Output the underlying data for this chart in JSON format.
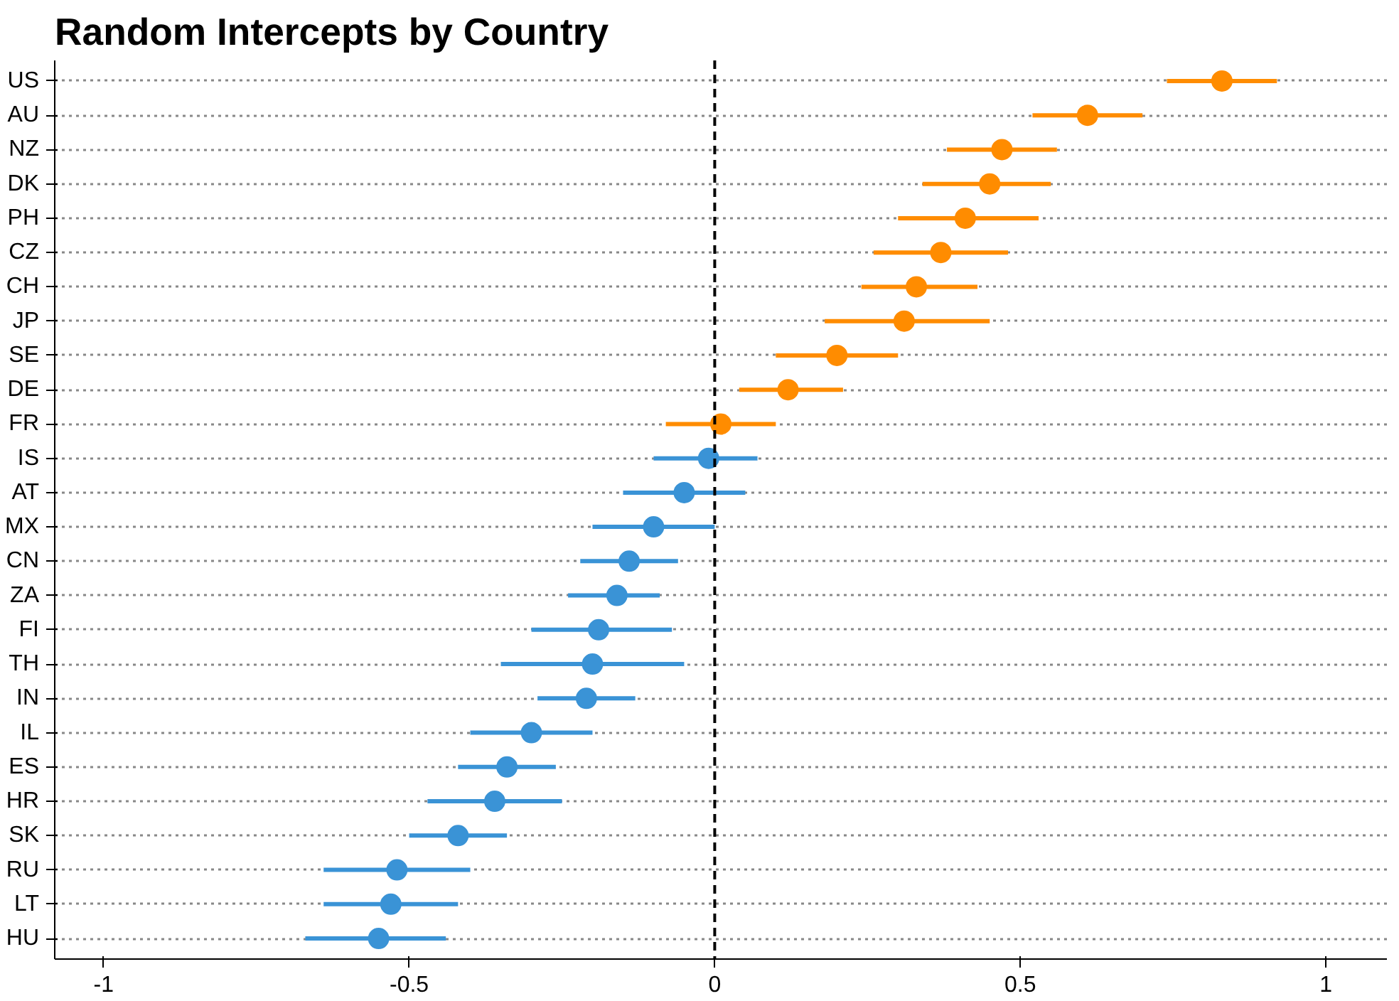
{
  "chart_data": {
    "type": "scatter",
    "orientation": "horizontal",
    "title": "Random Intercepts by Country",
    "categories": [
      "US",
      "AU",
      "NZ",
      "DK",
      "PH",
      "CZ",
      "CH",
      "JP",
      "SE",
      "DE",
      "FR",
      "IS",
      "AT",
      "MX",
      "CN",
      "ZA",
      "FI",
      "TH",
      "IN",
      "IL",
      "ES",
      "HR",
      "SK",
      "RU",
      "LT",
      "HU"
    ],
    "values": [
      0.83,
      0.61,
      0.47,
      0.45,
      0.41,
      0.37,
      0.33,
      0.31,
      0.2,
      0.12,
      0.01,
      -0.01,
      -0.05,
      -0.1,
      -0.14,
      -0.16,
      -0.19,
      -0.2,
      -0.21,
      -0.3,
      -0.34,
      -0.36,
      -0.42,
      -0.52,
      -0.53,
      -0.55
    ],
    "errors": [
      [
        0.74,
        0.92
      ],
      [
        0.52,
        0.7
      ],
      [
        0.38,
        0.56
      ],
      [
        0.34,
        0.55
      ],
      [
        0.3,
        0.53
      ],
      [
        0.26,
        0.48
      ],
      [
        0.24,
        0.43
      ],
      [
        0.18,
        0.45
      ],
      [
        0.1,
        0.3
      ],
      [
        0.04,
        0.21
      ],
      [
        -0.08,
        0.1
      ],
      [
        -0.1,
        0.07
      ],
      [
        -0.15,
        0.05
      ],
      [
        -0.2,
        0.0
      ],
      [
        -0.22,
        -0.06
      ],
      [
        -0.24,
        -0.09
      ],
      [
        -0.3,
        -0.07
      ],
      [
        -0.35,
        -0.05
      ],
      [
        -0.29,
        -0.13
      ],
      [
        -0.4,
        -0.2
      ],
      [
        -0.42,
        -0.26
      ],
      [
        -0.47,
        -0.25
      ],
      [
        -0.5,
        -0.34
      ],
      [
        -0.64,
        -0.4
      ],
      [
        -0.64,
        -0.42
      ],
      [
        -0.67,
        -0.44
      ]
    ],
    "colors": [
      "#ff8c00",
      "#ff8c00",
      "#ff8c00",
      "#ff8c00",
      "#ff8c00",
      "#ff8c00",
      "#ff8c00",
      "#ff8c00",
      "#ff8c00",
      "#ff8c00",
      "#ff8c00",
      "#3a93d6",
      "#3a93d6",
      "#3a93d6",
      "#3a93d6",
      "#3a93d6",
      "#3a93d6",
      "#3a93d6",
      "#3a93d6",
      "#3a93d6",
      "#3a93d6",
      "#3a93d6",
      "#3a93d6",
      "#3a93d6",
      "#3a93d6",
      "#3a93d6"
    ],
    "xlim": [
      -1.08,
      1.1
    ],
    "xticks": [
      -1,
      -0.5,
      0,
      0.5,
      1
    ],
    "ref_lines": [
      {
        "axis": "x",
        "value": 0,
        "color": "#000000",
        "line_style": "dashed"
      }
    ],
    "grid": "y",
    "marker": "circle"
  }
}
